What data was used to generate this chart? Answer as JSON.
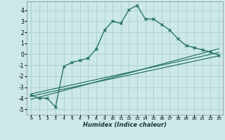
{
  "title": "",
  "xlabel": "Humidex (Indice chaleur)",
  "bg_color": "#cce8e8",
  "grid_color": "#aacfcf",
  "line_color": "#1a6b5a",
  "xlim": [
    -0.5,
    23.5
  ],
  "ylim": [
    -5.5,
    4.8
  ],
  "yticks": [
    -5,
    -4,
    -3,
    -2,
    -1,
    0,
    1,
    2,
    3,
    4
  ],
  "xticks": [
    0,
    1,
    2,
    3,
    4,
    5,
    6,
    7,
    8,
    9,
    10,
    11,
    12,
    13,
    14,
    15,
    16,
    17,
    18,
    19,
    20,
    21,
    22,
    23
  ],
  "main_x": [
    0,
    1,
    2,
    3,
    4,
    5,
    6,
    7,
    8,
    9,
    10,
    11,
    12,
    13,
    14,
    15,
    16,
    17,
    18,
    19,
    20,
    21,
    22,
    23
  ],
  "main_y": [
    -3.7,
    -4.0,
    -4.0,
    -4.8,
    -1.1,
    -0.75,
    -0.55,
    -0.35,
    0.5,
    2.2,
    3.0,
    2.8,
    4.05,
    4.45,
    3.2,
    3.2,
    2.7,
    2.2,
    1.4,
    0.8,
    0.6,
    0.4,
    0.2,
    -0.1
  ],
  "line2_x": [
    0,
    23
  ],
  "line2_y": [
    -3.6,
    0.15
  ],
  "line3_x": [
    0,
    23
  ],
  "line3_y": [
    -3.8,
    -0.15
  ],
  "line4_x": [
    0,
    23
  ],
  "line4_y": [
    -4.1,
    0.5
  ]
}
